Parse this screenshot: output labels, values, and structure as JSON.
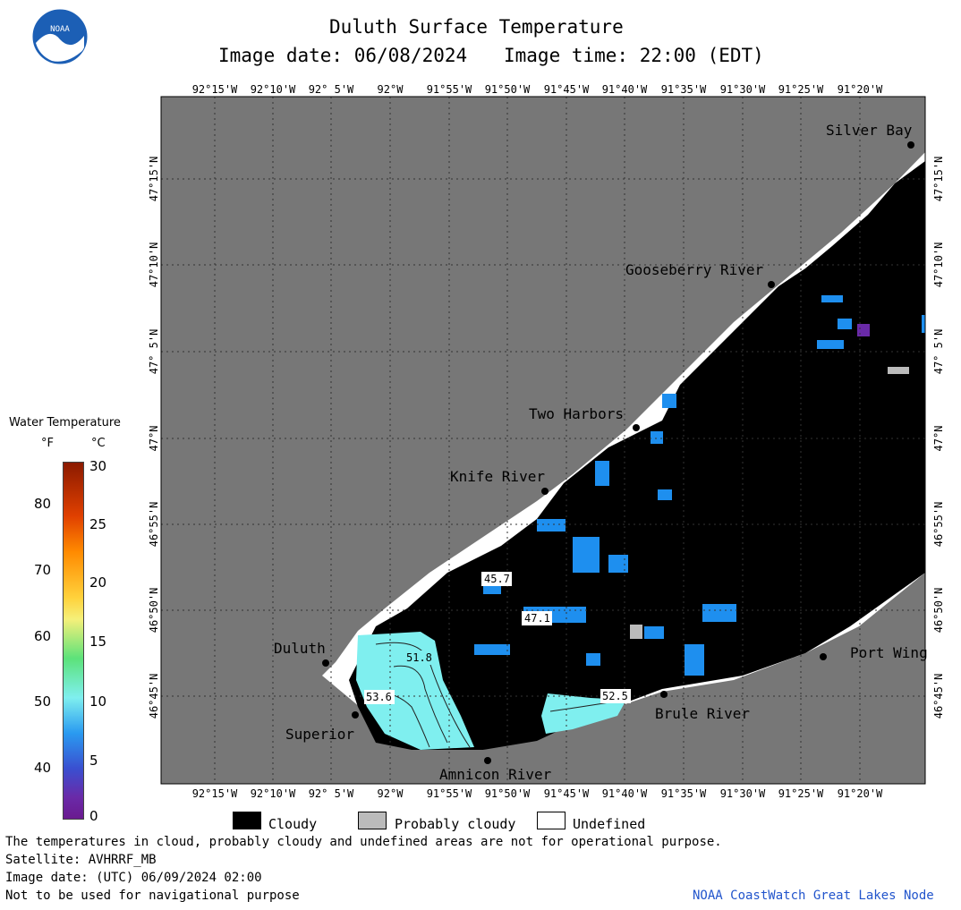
{
  "header": {
    "title": "Duluth Surface Temperature",
    "image_date": "Image date: 06/08/2024",
    "image_time": "Image time: 22:00 (EDT)"
  },
  "logo": {
    "text": "NOAA"
  },
  "legend": {
    "title": "Water Temperature",
    "unit_f": "°F",
    "unit_c": "°C",
    "f_ticks": [
      "80",
      "70",
      "60",
      "50",
      "40"
    ],
    "c_ticks": [
      "30",
      "25",
      "20",
      "15",
      "10",
      "5",
      "0"
    ],
    "cloudy": "Cloudy",
    "probably_cloudy": "Probably cloudy",
    "undefined": "Undefined"
  },
  "axes": {
    "lon_labels": [
      "92°15'W",
      "92°10'W",
      "92° 5'W",
      "92°W",
      "91°55'W",
      "91°50'W",
      "91°45'W",
      "91°40'W",
      "91°35'W",
      "91°30'W",
      "91°25'W",
      "91°20'W"
    ],
    "lat_labels": [
      "47°15'N",
      "47°10'N",
      "47° 5'N",
      "47°N",
      "46°55'N",
      "46°50'N",
      "46°45'N"
    ]
  },
  "places": {
    "silver_bay": "Silver Bay",
    "gooseberry": "Gooseberry River",
    "two_harbors": "Two Harbors",
    "knife_river": "Knife River",
    "duluth": "Duluth",
    "superior": "Superior",
    "amnicon": "Amnicon River",
    "brule": "Brule River",
    "port_wing": "Port Wing"
  },
  "temps": {
    "t1": "45.7",
    "t2": "47.1",
    "t3": "51.8",
    "t4": "53.6",
    "t5": "52.5"
  },
  "footer": {
    "line1": "The temperatures in cloud, probably cloudy and undefined areas are not for operational purpose.",
    "line2": "Satellite: AVHRRF_MB",
    "line3": "Image date: (UTC) 06/09/2024  02:00",
    "line4": "Not to be used for navigational purpose",
    "credit": "NOAA CoastWatch Great Lakes Node"
  },
  "colors": {
    "land": "#777777",
    "cloudy": "#000000",
    "probably_cloudy": "#bbbbbb",
    "undefined": "#ffffff",
    "water_warm": "#7fefef",
    "water_cool": "#1e8fef",
    "credit": "#2255cc"
  }
}
